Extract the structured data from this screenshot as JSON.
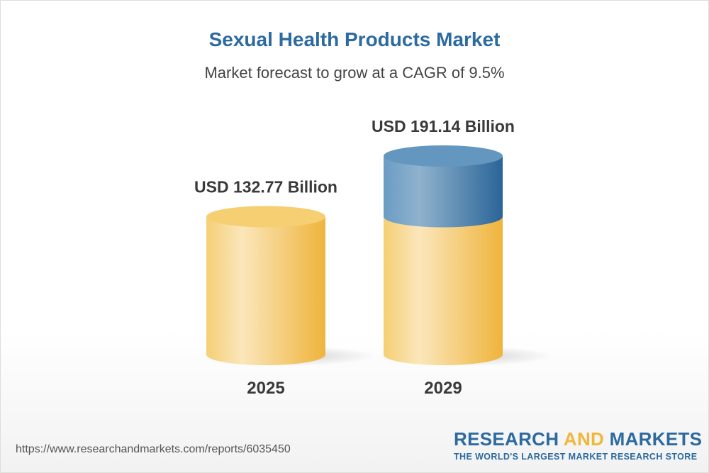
{
  "chart_data": {
    "type": "bar",
    "style": "3d-cylinder",
    "title": "Sexual Health Products Market",
    "subtitle": "Market forecast to grow at a CAGR of 9.5%",
    "categories": [
      "2025",
      "2029"
    ],
    "values": [
      132.77,
      191.14
    ],
    "data_labels": [
      "USD 132.77 Billion",
      "USD 191.14 Billion"
    ],
    "unit": "USD Billion",
    "colors": {
      "base": "#f2c35a",
      "growth": "#3f7fb0",
      "title": "#2c6aa0"
    }
  },
  "footer": {
    "url": "https://www.researchandmarkets.com/reports/6035450",
    "logo": {
      "word1": "RESEARCH",
      "word2": "AND",
      "word3": "MARKETS",
      "tagline": "THE WORLD'S LARGEST MARKET RESEARCH STORE"
    }
  }
}
